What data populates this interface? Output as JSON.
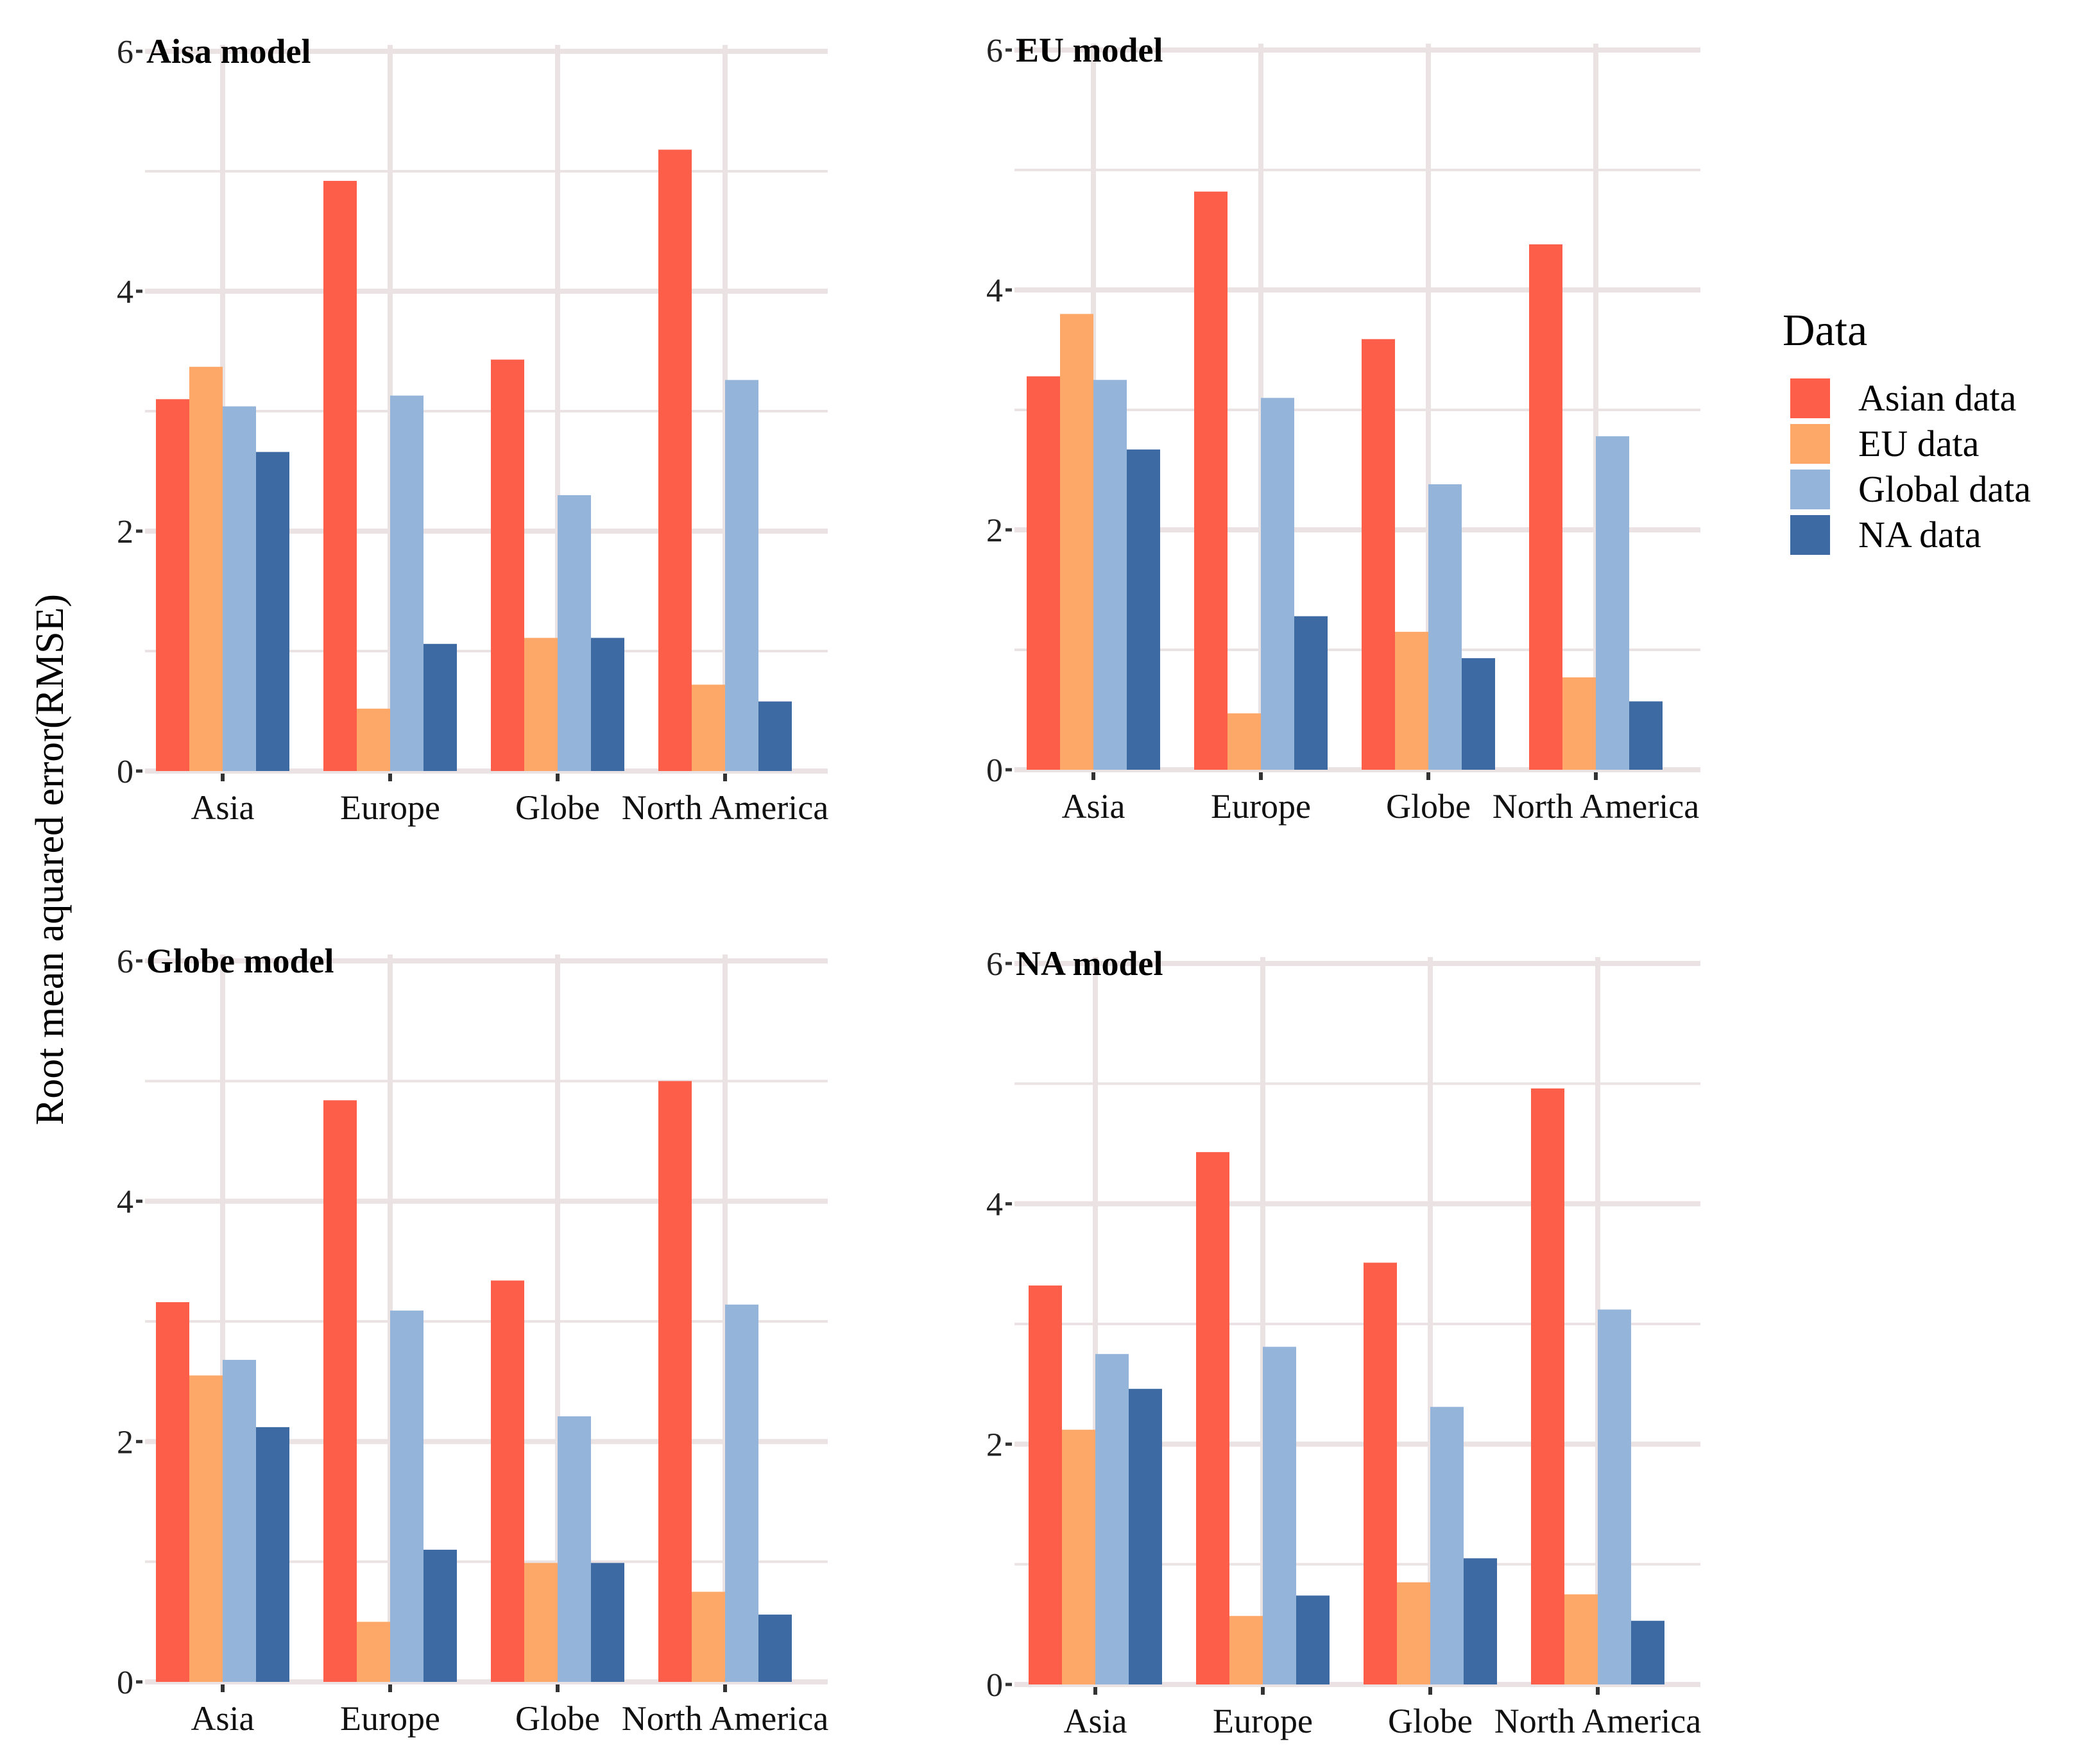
{
  "figure": {
    "ylabel": "Root mean aquared error(RMSE)"
  },
  "legend": {
    "title": "Data",
    "entries": [
      {
        "name": "Asian data",
        "color": "#FC5E49"
      },
      {
        "name": "EU data",
        "color": "#FDA869"
      },
      {
        "name": "Global data",
        "color": "#94B4DA"
      },
      {
        "name": "NA data",
        "color": "#3E6AA4"
      }
    ]
  },
  "chart_data": [
    {
      "type": "bar",
      "title": "Aisa model",
      "categories": [
        "Asia",
        "Europe",
        "Globe",
        "North America"
      ],
      "series": [
        {
          "name": "Asian data",
          "values": [
            3.1,
            4.92,
            3.43,
            5.18
          ]
        },
        {
          "name": "EU data",
          "values": [
            3.37,
            0.52,
            1.11,
            0.72
          ]
        },
        {
          "name": "Global data",
          "values": [
            3.04,
            3.13,
            2.3,
            3.26
          ]
        },
        {
          "name": "NA data",
          "values": [
            2.66,
            1.06,
            1.11,
            0.58
          ]
        }
      ],
      "ylim": [
        0,
        6
      ],
      "yticks": [
        0,
        2,
        4,
        6
      ],
      "xlabel": "",
      "ylabel": "Root mean aquared error(RMSE)"
    },
    {
      "type": "bar",
      "title": "EU model",
      "categories": [
        "Asia",
        "Europe",
        "Globe",
        "North America"
      ],
      "series": [
        {
          "name": "Asian data",
          "values": [
            3.28,
            4.82,
            3.59,
            4.38
          ]
        },
        {
          "name": "EU data",
          "values": [
            3.8,
            0.47,
            1.15,
            0.77
          ]
        },
        {
          "name": "Global data",
          "values": [
            3.25,
            3.1,
            2.38,
            2.78
          ]
        },
        {
          "name": "NA data",
          "values": [
            2.67,
            1.28,
            0.93,
            0.57
          ]
        }
      ],
      "ylim": [
        0,
        6
      ],
      "yticks": [
        0,
        2,
        4,
        6
      ],
      "xlabel": "",
      "ylabel": "Root mean aquared error(RMSE)"
    },
    {
      "type": "bar",
      "title": "Globe model",
      "categories": [
        "Asia",
        "Europe",
        "Globe",
        "North America"
      ],
      "series": [
        {
          "name": "Asian data",
          "values": [
            3.16,
            4.84,
            3.34,
            5.0
          ]
        },
        {
          "name": "EU data",
          "values": [
            2.55,
            0.5,
            0.99,
            0.75
          ]
        },
        {
          "name": "Global data",
          "values": [
            2.68,
            3.09,
            2.21,
            3.14
          ]
        },
        {
          "name": "NA data",
          "values": [
            2.12,
            1.1,
            0.99,
            0.56
          ]
        }
      ],
      "ylim": [
        0,
        6
      ],
      "yticks": [
        0,
        2,
        4,
        6
      ],
      "xlabel": "",
      "ylabel": "Root mean aquared error(RMSE)"
    },
    {
      "type": "bar",
      "title": "NA model",
      "categories": [
        "Asia",
        "Europe",
        "Globe",
        "North America"
      ],
      "series": [
        {
          "name": "Asian data",
          "values": [
            3.32,
            4.43,
            3.51,
            4.96
          ]
        },
        {
          "name": "EU data",
          "values": [
            2.12,
            0.57,
            0.85,
            0.75
          ]
        },
        {
          "name": "Global data",
          "values": [
            2.75,
            2.81,
            2.31,
            3.12
          ]
        },
        {
          "name": "NA data",
          "values": [
            2.46,
            0.74,
            1.05,
            0.53
          ]
        }
      ],
      "ylim": [
        0,
        6
      ],
      "yticks": [
        0,
        2,
        4,
        6
      ],
      "xlabel": "",
      "ylabel": "Root mean aquared error(RMSE)"
    }
  ]
}
